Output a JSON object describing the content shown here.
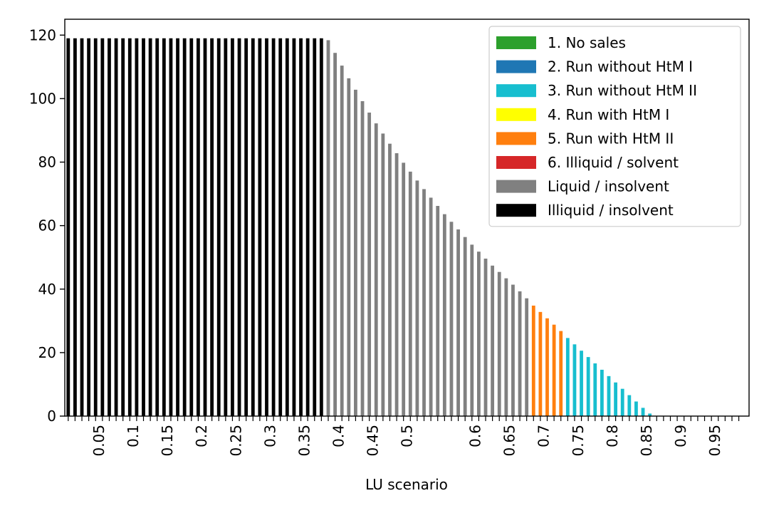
{
  "chart_data": {
    "type": "bar",
    "title": "",
    "xlabel": "LU scenario",
    "ylabel": "",
    "ylim": [
      0,
      125
    ],
    "yticks": [
      0,
      20,
      40,
      60,
      80,
      100,
      120
    ],
    "xlim": [
      0,
      1
    ],
    "bar_width": 0.005,
    "xtick_labels": [
      {
        "x": 0.05,
        "label": "0.05"
      },
      {
        "x": 0.1,
        "label": "0.1"
      },
      {
        "x": 0.15,
        "label": "0.15"
      },
      {
        "x": 0.2,
        "label": "0.2"
      },
      {
        "x": 0.25,
        "label": "0.25"
      },
      {
        "x": 0.3,
        "label": "0.3"
      },
      {
        "x": 0.35,
        "label": "0.35"
      },
      {
        "x": 0.4,
        "label": "0.4"
      },
      {
        "x": 0.45,
        "label": "0.45"
      },
      {
        "x": 0.5,
        "label": "0.5"
      },
      {
        "x": 0.6,
        "label": "0.6"
      },
      {
        "x": 0.65,
        "label": "0.65"
      },
      {
        "x": 0.7,
        "label": "0.7"
      },
      {
        "x": 0.75,
        "label": "0.75"
      },
      {
        "x": 0.8,
        "label": "0.8"
      },
      {
        "x": 0.85,
        "label": "0.85"
      },
      {
        "x": 0.9,
        "label": "0.9"
      },
      {
        "x": 0.95,
        "label": "0.95"
      }
    ],
    "legend_position": "top-right",
    "series": [
      {
        "name": "1. No sales",
        "color": "#2ca02c",
        "x": [],
        "values": []
      },
      {
        "name": "2. Run without HtM I",
        "color": "#1f77b4",
        "x": [],
        "values": []
      },
      {
        "name": "3. Run without HtM II",
        "color": "#17becf",
        "x": [
          0.735,
          0.745,
          0.755,
          0.765,
          0.775,
          0.785,
          0.795,
          0.805,
          0.815,
          0.825,
          0.835,
          0.845,
          0.855,
          0.865
        ],
        "values": [
          24.6,
          22.6,
          20.6,
          18.6,
          16.6,
          14.6,
          12.6,
          10.6,
          8.6,
          6.6,
          4.6,
          2.6,
          0.8,
          0.1
        ]
      },
      {
        "name": "4. Run with HtM I",
        "color": "#ffff00",
        "x": [],
        "values": []
      },
      {
        "name": "5. Run with HtM II",
        "color": "#ff7f0e",
        "x": [
          0.685,
          0.695,
          0.705,
          0.715,
          0.725
        ],
        "values": [
          34.8,
          32.8,
          30.8,
          28.8,
          26.8
        ]
      },
      {
        "name": "6. Illiquid / solvent",
        "color": "#d62728",
        "x": [],
        "values": []
      },
      {
        "name": "Liquid / insolvent",
        "color": "#808080",
        "x": [
          0.385,
          0.395,
          0.405,
          0.415,
          0.425,
          0.435,
          0.445,
          0.455,
          0.465,
          0.475,
          0.485,
          0.495,
          0.505,
          0.515,
          0.525,
          0.535,
          0.545,
          0.555,
          0.565,
          0.575,
          0.585,
          0.595,
          0.605,
          0.615,
          0.625,
          0.635,
          0.645,
          0.655,
          0.665,
          0.675
        ],
        "values": [
          118.4,
          114.4,
          110.4,
          106.4,
          102.8,
          99.2,
          95.6,
          92.2,
          89.0,
          85.8,
          82.8,
          79.8,
          77.0,
          74.2,
          71.5,
          68.8,
          66.2,
          63.6,
          61.2,
          58.8,
          56.4,
          54.0,
          51.8,
          49.6,
          47.4,
          45.4,
          43.4,
          41.4,
          39.3,
          37.1
        ]
      },
      {
        "name": "Illiquid / insolvent",
        "color": "#000000",
        "x": [
          0.005,
          0.015,
          0.025,
          0.035,
          0.045,
          0.055,
          0.065,
          0.075,
          0.085,
          0.095,
          0.105,
          0.115,
          0.125,
          0.135,
          0.145,
          0.155,
          0.165,
          0.175,
          0.185,
          0.195,
          0.205,
          0.215,
          0.225,
          0.235,
          0.245,
          0.255,
          0.265,
          0.275,
          0.285,
          0.295,
          0.305,
          0.315,
          0.325,
          0.335,
          0.345,
          0.355,
          0.365,
          0.375
        ],
        "values": [
          119,
          119,
          119,
          119,
          119,
          119,
          119,
          119,
          119,
          119,
          119,
          119,
          119,
          119,
          119,
          119,
          119,
          119,
          119,
          119,
          119,
          119,
          119,
          119,
          119,
          119,
          119,
          119,
          119,
          119,
          119,
          119,
          119,
          119,
          119,
          119,
          119,
          119
        ]
      }
    ]
  }
}
